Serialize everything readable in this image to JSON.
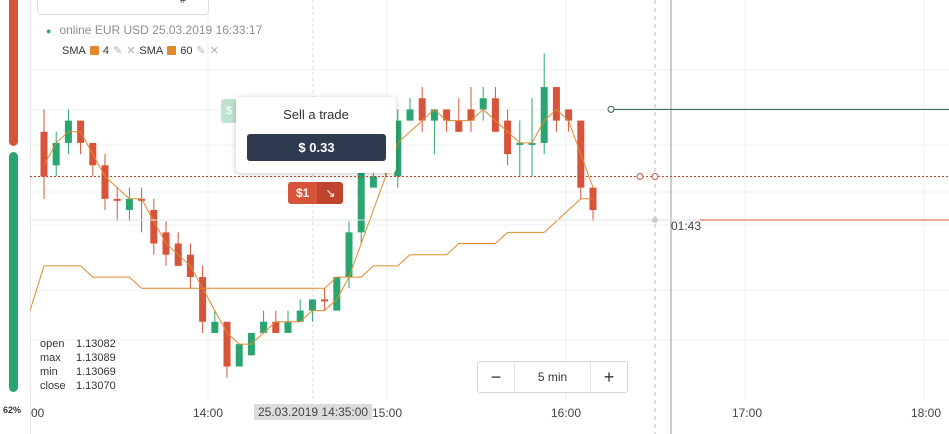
{
  "sidebar": {
    "percent_label": "62%"
  },
  "top_box": {
    "left_glyph": "^",
    "right_glyph": "#"
  },
  "header": {
    "status": "online",
    "pair": "EUR USD",
    "datetime": "25.03.2019 16:33:17",
    "dot_color": "#2aa56f"
  },
  "indicators": [
    {
      "name": "SMA",
      "period": "4",
      "color": "#e08a2c",
      "edit_icon": "pencil-icon",
      "remove_icon": "close-icon"
    },
    {
      "name": "SMA",
      "period": "60",
      "color": "#e08a2c",
      "edit_icon": "pencil-icon",
      "remove_icon": "close-icon"
    }
  ],
  "ohlc": {
    "open_label": "open",
    "open": "1.13082",
    "max_label": "max",
    "max": "1.13089",
    "min_label": "min",
    "min": "1.13069",
    "close_label": "close",
    "close": "1.13070"
  },
  "tooltip": {
    "title": "Sell a trade",
    "price": "$ 0.33"
  },
  "trade_marker": {
    "amount": "$1",
    "direction_icon": "arrow-down-right-icon",
    "color": "#d7533a"
  },
  "ghost_marker": {
    "label": "$"
  },
  "timer": "01:43",
  "timeframe": {
    "minus": "−",
    "label": "5 min",
    "plus": "+"
  },
  "xaxis": {
    "labels": [
      "00",
      "14:00",
      "15:00",
      "16:00",
      "17:00",
      "18:00"
    ],
    "crosshair": "25.03.2019 14:35:00"
  },
  "colors": {
    "up": "#2aa56f",
    "down": "#d7533a",
    "sma": "#e08a2c"
  },
  "chart_data": {
    "type": "candlestick",
    "candles": [
      {
        "o": 1.1311,
        "c": 1.1307,
        "h": 1.1313,
        "l": 1.1305,
        "dir": "down"
      },
      {
        "o": 1.1308,
        "c": 1.131,
        "h": 1.1311,
        "l": 1.1307,
        "dir": "up"
      },
      {
        "o": 1.131,
        "c": 1.1312,
        "h": 1.1313,
        "l": 1.1309,
        "dir": "up"
      },
      {
        "o": 1.1312,
        "c": 1.131,
        "h": 1.1312,
        "l": 1.1309,
        "dir": "down"
      },
      {
        "o": 1.131,
        "c": 1.1308,
        "h": 1.131,
        "l": 1.1307,
        "dir": "down"
      },
      {
        "o": 1.1308,
        "c": 1.1305,
        "h": 1.1309,
        "l": 1.1304,
        "dir": "down"
      },
      {
        "o": 1.1305,
        "c": 1.1305,
        "h": 1.1306,
        "l": 1.1303,
        "dir": "down"
      },
      {
        "o": 1.1305,
        "c": 1.1304,
        "h": 1.1306,
        "l": 1.1303,
        "dir": "up"
      },
      {
        "o": 1.1305,
        "c": 1.1305,
        "h": 1.1306,
        "l": 1.1302,
        "dir": "down"
      },
      {
        "o": 1.1304,
        "c": 1.1301,
        "h": 1.1305,
        "l": 1.13,
        "dir": "down"
      },
      {
        "o": 1.1302,
        "c": 1.13,
        "h": 1.1303,
        "l": 1.1299,
        "dir": "down"
      },
      {
        "o": 1.1301,
        "c": 1.1299,
        "h": 1.1302,
        "l": 1.1299,
        "dir": "down"
      },
      {
        "o": 1.13,
        "c": 1.1298,
        "h": 1.1301,
        "l": 1.1297,
        "dir": "down"
      },
      {
        "o": 1.1298,
        "c": 1.1294,
        "h": 1.1299,
        "l": 1.1293,
        "dir": "down"
      },
      {
        "o": 1.1293,
        "c": 1.1294,
        "h": 1.1295,
        "l": 1.1293,
        "dir": "up"
      },
      {
        "o": 1.1294,
        "c": 1.129,
        "h": 1.1294,
        "l": 1.1289,
        "dir": "down"
      },
      {
        "o": 1.129,
        "c": 1.1292,
        "h": 1.1292,
        "l": 1.129,
        "dir": "up"
      },
      {
        "o": 1.1291,
        "c": 1.1293,
        "h": 1.1293,
        "l": 1.1291,
        "dir": "up"
      },
      {
        "o": 1.1293,
        "c": 1.1294,
        "h": 1.1295,
        "l": 1.1293,
        "dir": "up"
      },
      {
        "o": 1.1294,
        "c": 1.1293,
        "h": 1.1295,
        "l": 1.1293,
        "dir": "down"
      },
      {
        "o": 1.1293,
        "c": 1.1294,
        "h": 1.1295,
        "l": 1.1293,
        "dir": "up"
      },
      {
        "o": 1.1294,
        "c": 1.1295,
        "h": 1.1296,
        "l": 1.1294,
        "dir": "up"
      },
      {
        "o": 1.1295,
        "c": 1.1296,
        "h": 1.1296,
        "l": 1.1294,
        "dir": "up"
      },
      {
        "o": 1.1296,
        "c": 1.1296,
        "h": 1.1297,
        "l": 1.1295,
        "dir": "down"
      },
      {
        "o": 1.1295,
        "c": 1.1298,
        "h": 1.1298,
        "l": 1.1295,
        "dir": "up"
      },
      {
        "o": 1.1298,
        "c": 1.1302,
        "h": 1.1303,
        "l": 1.1297,
        "dir": "up"
      },
      {
        "o": 1.1302,
        "c": 1.1308,
        "h": 1.1309,
        "l": 1.1301,
        "dir": "up"
      },
      {
        "o": 1.1306,
        "c": 1.1307,
        "h": 1.1308,
        "l": 1.1306,
        "dir": "up"
      },
      {
        "o": 1.131,
        "c": 1.1308,
        "h": 1.1311,
        "l": 1.1307,
        "dir": "down"
      },
      {
        "o": 1.1307,
        "c": 1.1312,
        "h": 1.1313,
        "l": 1.1306,
        "dir": "up"
      },
      {
        "o": 1.1312,
        "c": 1.1313,
        "h": 1.1314,
        "l": 1.1312,
        "dir": "up"
      },
      {
        "o": 1.1314,
        "c": 1.1312,
        "h": 1.1315,
        "l": 1.1311,
        "dir": "down"
      },
      {
        "o": 1.1312,
        "c": 1.1313,
        "h": 1.1313,
        "l": 1.1309,
        "dir": "up"
      },
      {
        "o": 1.1313,
        "c": 1.1312,
        "h": 1.1313,
        "l": 1.1311,
        "dir": "down"
      },
      {
        "o": 1.1311,
        "c": 1.1312,
        "h": 1.1314,
        "l": 1.1311,
        "dir": "down"
      },
      {
        "o": 1.1312,
        "c": 1.1313,
        "h": 1.1315,
        "l": 1.1311,
        "dir": "down"
      },
      {
        "o": 1.1313,
        "c": 1.1314,
        "h": 1.1315,
        "l": 1.1312,
        "dir": "up"
      },
      {
        "o": 1.1314,
        "c": 1.1311,
        "h": 1.1315,
        "l": 1.1311,
        "dir": "down"
      },
      {
        "o": 1.1312,
        "c": 1.1309,
        "h": 1.1313,
        "l": 1.1308,
        "dir": "down"
      },
      {
        "o": 1.131,
        "c": 1.131,
        "h": 1.1312,
        "l": 1.1307,
        "dir": "up"
      },
      {
        "o": 1.131,
        "c": 1.131,
        "h": 1.1314,
        "l": 1.1307,
        "dir": "up"
      },
      {
        "o": 1.131,
        "c": 1.1315,
        "h": 1.1318,
        "l": 1.1309,
        "dir": "up"
      },
      {
        "o": 1.1315,
        "c": 1.1312,
        "h": 1.1315,
        "l": 1.1311,
        "dir": "down"
      },
      {
        "o": 1.1313,
        "c": 1.1312,
        "h": 1.1313,
        "l": 1.1311,
        "dir": "down"
      },
      {
        "o": 1.1312,
        "c": 1.1306,
        "h": 1.1312,
        "l": 1.1305,
        "dir": "down"
      },
      {
        "o": 1.1306,
        "c": 1.1304,
        "h": 1.1306,
        "l": 1.1303,
        "dir": "down"
      }
    ],
    "sma_fast": [
      1.1308,
      1.131,
      1.1311,
      1.1311,
      1.1309,
      1.1307,
      1.1306,
      1.1305,
      1.1305,
      1.1303,
      1.1301,
      1.13,
      1.1299,
      1.1297,
      1.1295,
      1.1293,
      1.1292,
      1.1292,
      1.1293,
      1.1294,
      1.1294,
      1.1294,
      1.1295,
      1.1295,
      1.1296,
      1.1298,
      1.1301,
      1.1304,
      1.1307,
      1.131,
      1.1311,
      1.1312,
      1.1313,
      1.1312,
      1.1312,
      1.1312,
      1.1313,
      1.1312,
      1.1311,
      1.131,
      1.131,
      1.1312,
      1.1313,
      1.1312,
      1.1309,
      1.1306
    ],
    "sma_slow": [
      1.1299,
      1.1299,
      1.1299,
      1.1299,
      1.1298,
      1.1298,
      1.1298,
      1.1298,
      1.1297,
      1.1297,
      1.1297,
      1.1297,
      1.1297,
      1.1297,
      1.1297,
      1.1297,
      1.1297,
      1.1297,
      1.1297,
      1.1297,
      1.1297,
      1.1297,
      1.1297,
      1.1297,
      1.1298,
      1.1298,
      1.1298,
      1.1299,
      1.1299,
      1.1299,
      1.13,
      1.13,
      1.13,
      1.13,
      1.1301,
      1.1301,
      1.1301,
      1.1301,
      1.1302,
      1.1302,
      1.1302,
      1.1302,
      1.1303,
      1.1304,
      1.1305,
      1.1305
    ],
    "ylim": [
      1.1287,
      1.1321
    ],
    "price_levels": {
      "open_deal": 1.1307,
      "current": 1.1304,
      "upper_line": 1.1313
    }
  }
}
